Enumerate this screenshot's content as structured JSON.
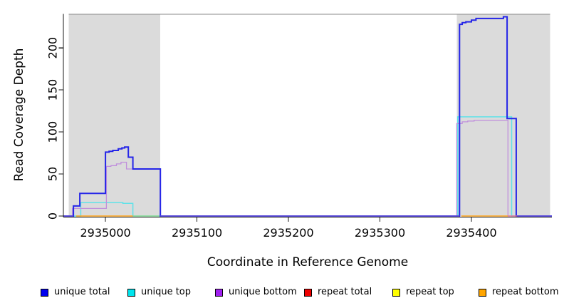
{
  "chart_data": {
    "type": "line",
    "subtype": "step-coverage",
    "title": "",
    "xlabel": "Coordinate in Reference Genome",
    "ylabel": "Read Coverage Depth",
    "x_range": [
      2934954,
      2935488
    ],
    "y_range": [
      0,
      240
    ],
    "x_ticks": [
      2935000,
      2935100,
      2935200,
      2935300,
      2935400
    ],
    "y_ticks": [
      0,
      50,
      100,
      150,
      200
    ],
    "grid": false,
    "legend_position": "bottom",
    "background_color": "#ffffff",
    "shaded_region_color": "#dbdbdb",
    "shaded_regions": [
      {
        "x_start": 2934960,
        "x_end": 2935060
      },
      {
        "x_start": 2935384,
        "x_end": 2935486
      }
    ],
    "series": [
      {
        "name": "unique total",
        "color": "#0000EE",
        "render_color": "#2525e8",
        "width": 2,
        "segments": [
          [
            [
              2934954,
              0
            ],
            [
              2934965,
              12
            ],
            [
              2934972,
              27
            ],
            [
              2935000,
              76
            ],
            [
              2935004,
              77
            ],
            [
              2935008,
              78
            ],
            [
              2935014,
              80
            ],
            [
              2935018,
              81
            ],
            [
              2935021,
              82
            ],
            [
              2935025,
              70
            ],
            [
              2935030,
              56
            ],
            [
              2935060,
              0
            ],
            [
              2935387,
              228
            ],
            [
              2935390,
              230
            ],
            [
              2935394,
              231
            ],
            [
              2935400,
              233
            ],
            [
              2935405,
              235
            ],
            [
              2935435,
              237
            ],
            [
              2935439,
              116
            ],
            [
              2935449,
              0
            ],
            [
              2935488,
              0
            ]
          ]
        ]
      },
      {
        "name": "unique top",
        "color": "#00E5EE",
        "render_color": "#5fe2e8",
        "width": 1.5,
        "segments": [
          [
            [
              2934954,
              0
            ],
            [
              2934973,
              16
            ],
            [
              2935019,
              15
            ],
            [
              2935030,
              0
            ],
            [
              2935385,
              118
            ],
            [
              2935444,
              0
            ],
            [
              2935488,
              0
            ]
          ]
        ]
      },
      {
        "name": "unique bottom",
        "color": "#A020F0",
        "render_color": "#c08fdc",
        "width": 1.3,
        "segments": [
          [
            [
              2934954,
              0
            ],
            [
              2934964,
              9
            ],
            [
              2935001,
              59
            ],
            [
              2935006,
              60
            ],
            [
              2935012,
              62
            ],
            [
              2935017,
              64
            ],
            [
              2935023,
              56
            ],
            [
              2935060,
              0
            ],
            [
              2935384,
              110
            ],
            [
              2935390,
              112
            ],
            [
              2935396,
              113
            ],
            [
              2935403,
              114
            ],
            [
              2935440,
              0
            ],
            [
              2935488,
              0
            ]
          ]
        ]
      },
      {
        "name": "repeat total",
        "color": "#EE0000",
        "render_color": "#ee0000",
        "width": 1.3,
        "segments": []
      },
      {
        "name": "repeat top",
        "color": "#FFFF00",
        "render_color": "#ffff00",
        "width": 1.3,
        "segments": []
      },
      {
        "name": "repeat bottom",
        "color": "#FFA500",
        "render_color": "#ffa318",
        "width": 1.5,
        "segments": [
          [
            [
              2934968,
              0
            ],
            [
              2935030,
              0
            ]
          ],
          [
            [
              2935389,
              0
            ],
            [
              2935440,
              0
            ]
          ]
        ]
      }
    ],
    "zero_line_blends": [
      {
        "name": "blend-blue-purple-zero",
        "color": "#6e5bd8",
        "width": 1.4,
        "spans": [
          [
            2934954,
            2934965
          ],
          [
            2935060,
            2935387
          ],
          [
            2935450,
            2935488
          ]
        ]
      },
      {
        "name": "blend-cyan-yellow-zero",
        "color": "#8fda8f",
        "width": 1.4,
        "spans": [
          [
            2935030,
            2935059
          ]
        ]
      },
      {
        "name": "blend-red-purple-zero",
        "color": "#e36e93",
        "width": 1.4,
        "spans": [
          [
            2935440,
            2935450
          ]
        ]
      }
    ],
    "legend": [
      {
        "label": "unique total",
        "color": "#0000EE"
      },
      {
        "label": "unique top",
        "color": "#00E5EE"
      },
      {
        "label": "unique bottom",
        "color": "#A020F0"
      },
      {
        "label": "repeat total",
        "color": "#EE0000"
      },
      {
        "label": "repeat top",
        "color": "#FFFF00"
      },
      {
        "label": "repeat bottom",
        "color": "#FFA500"
      }
    ]
  }
}
